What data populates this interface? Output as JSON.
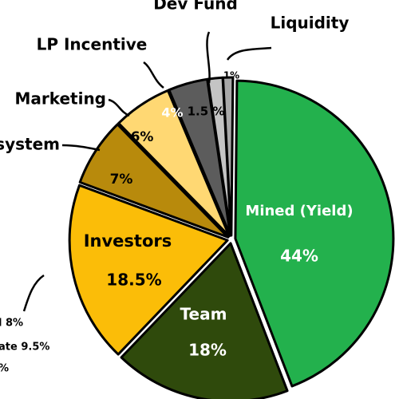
{
  "chart_data": {
    "type": "pie",
    "categories": [
      "Mined (Yield)",
      "Team",
      "Investors",
      "Ecosystem",
      "Marketing",
      "LP Incentive",
      "Dev Fund",
      "Liquidity"
    ],
    "values": [
      44,
      18,
      18.5,
      7,
      6,
      4,
      1.5,
      1
    ],
    "value_labels": [
      "44%",
      "18%",
      "18.5%",
      "7%",
      "6%",
      "4%",
      "1.5 %",
      "1%"
    ],
    "colors": [
      "#23b14d",
      "#2f4a0c",
      "#fbbd08",
      "#b88a0c",
      "#ffd873",
      "#5c5c5c",
      "#c4c4c4",
      "#a9a9a9"
    ],
    "annotations": [
      "l 8%",
      "ate 9.5%",
      "%"
    ]
  }
}
